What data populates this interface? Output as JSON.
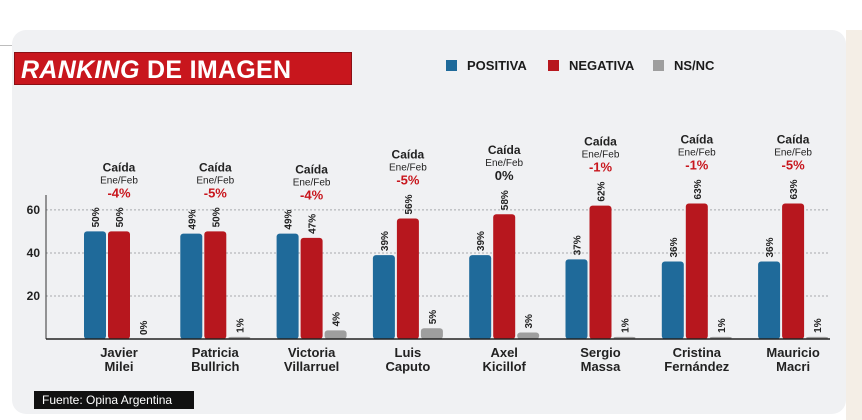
{
  "title": {
    "part1": "RANKING",
    "part2": " DE IMAGEN"
  },
  "source": "Fuente: Opina Argentina",
  "colors": {
    "positiva": "#1f6a9a",
    "negativa": "#b7171e",
    "nsnc": "#9e9e9e",
    "change_red": "#c8161d",
    "title_bg": "#c8161d"
  },
  "chart_data": {
    "type": "bar",
    "title": "RANKING DE IMAGEN",
    "ylim": [
      0,
      66
    ],
    "yticks": [
      "20",
      "40",
      "60"
    ],
    "categories": [
      [
        "Javier",
        "Milei"
      ],
      [
        "Patricia",
        "Bullrich"
      ],
      [
        "Victoria",
        "Villarruel"
      ],
      [
        "Luis",
        "Caputo"
      ],
      [
        "Axel",
        "Kicillof"
      ],
      [
        "Sergio",
        "Massa"
      ],
      [
        "Cristina",
        "Fernández"
      ],
      [
        "Mauricio",
        "Macri"
      ]
    ],
    "series": [
      {
        "name": "POSITIVA",
        "values": [
          50,
          49,
          49,
          39,
          39,
          37,
          36,
          36
        ]
      },
      {
        "name": "NEGATIVA",
        "values": [
          50,
          50,
          47,
          56,
          58,
          62,
          63,
          63
        ]
      },
      {
        "name": "NS/NC",
        "values": [
          0,
          1,
          4,
          5,
          3,
          1,
          1,
          1
        ]
      }
    ],
    "change_label": [
      "Caída",
      "Ene/Feb"
    ],
    "changes": [
      "-4%",
      "-5%",
      "-4%",
      "-5%",
      "0%",
      "-1%",
      "-1%",
      "-5%"
    ],
    "legend_position": "top"
  }
}
